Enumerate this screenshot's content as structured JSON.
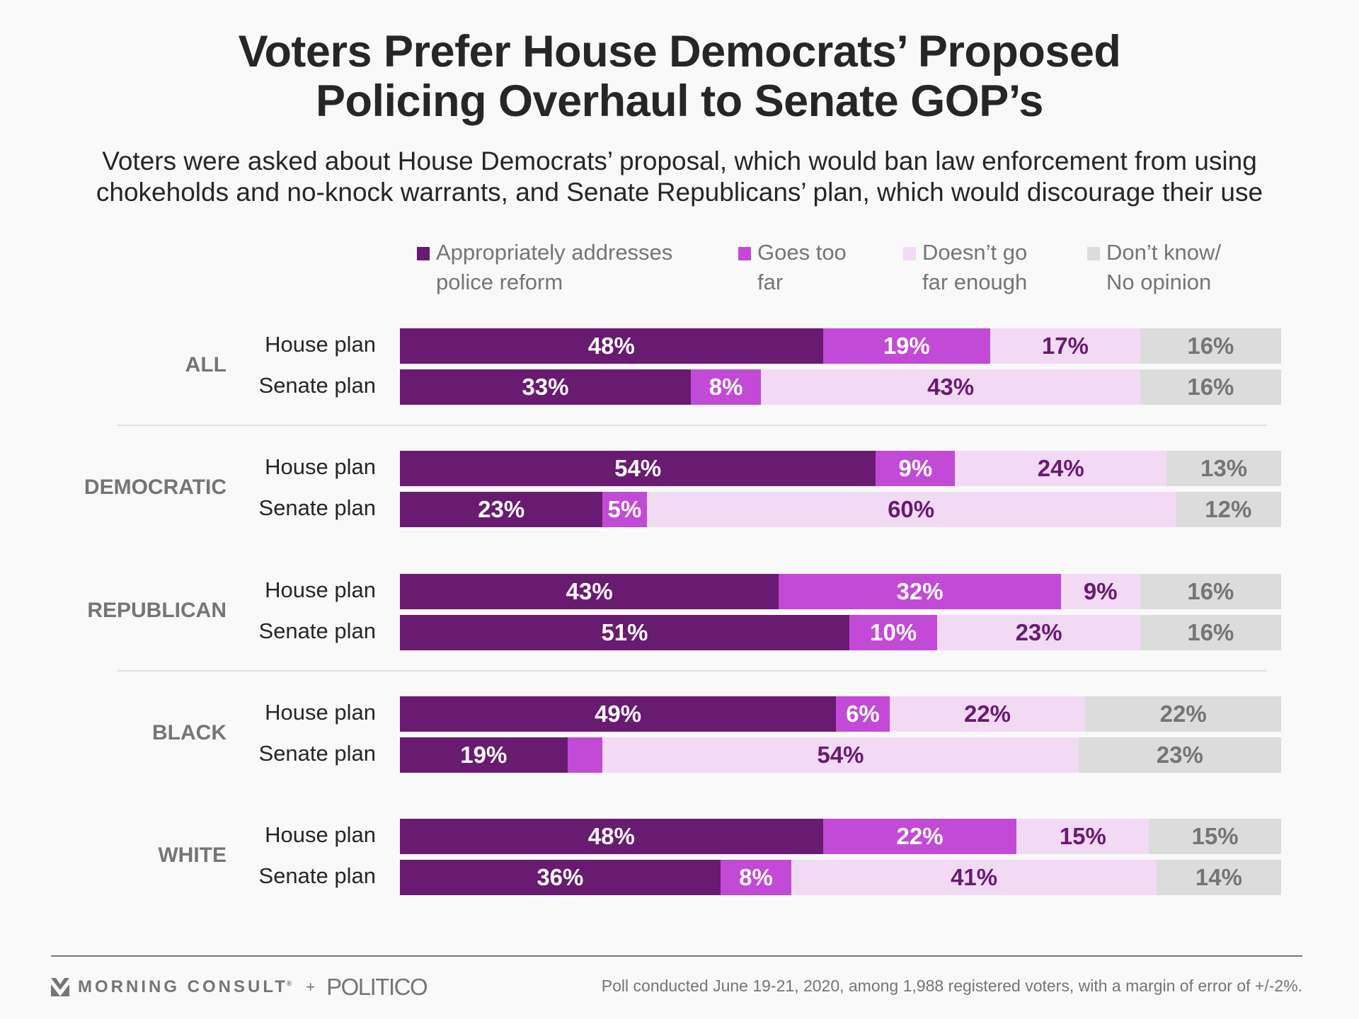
{
  "title": [
    "Voters Prefer House Democrats’ Proposed",
    "Policing Overhaul to Senate GOP’s"
  ],
  "subtitle": [
    "Voters were asked about House Democrats’ proposal, which would ban law enforcement from using",
    "chokeholds and no-knock warrants, and Senate Republicans’ plan, which would discourage their use"
  ],
  "colors": {
    "appropriate": "#691a71",
    "too_far": "#c24ad6",
    "not_far_enough": "#f2daf5",
    "dont_know": "#dcdcdc",
    "label_light": "#ffffff",
    "label_dark": "#691a71",
    "label_gray": "#757575"
  },
  "legend": [
    {
      "key": "appropriate",
      "lines": [
        "Appropriately addresses",
        "police reform"
      ]
    },
    {
      "key": "too_far",
      "lines": [
        "Goes too",
        "far"
      ]
    },
    {
      "key": "not_far_enough",
      "lines": [
        "Doesn’t go",
        "far enough"
      ]
    },
    {
      "key": "dont_know",
      "lines": [
        "Don’t know/",
        "No opinion"
      ]
    }
  ],
  "chart_data": {
    "type": "bar",
    "orientation": "horizontal-stacked-100",
    "title": "Voters Prefer House Democrats’ Proposed Policing Overhaul to Senate GOP’s",
    "subtitle": "Voters were asked about House Democrats’ proposal, which would ban law enforcement from using chokeholds and no-knock warrants, and Senate Republicans’ plan, which would discourage their use",
    "series_names": [
      "Appropriately addresses police reform",
      "Goes too far",
      "Doesn’t go far enough",
      "Don’t know/No opinion"
    ],
    "unit": "%",
    "legend_position": "top",
    "groups": [
      {
        "name": "ALL",
        "rows": [
          {
            "label": "House plan",
            "values": [
              48,
              19,
              17,
              16
            ],
            "labels": [
              "48%",
              "19%",
              "17%",
              "16%"
            ]
          },
          {
            "label": "Senate plan",
            "values": [
              33,
              8,
              43,
              16
            ],
            "labels": [
              "33%",
              "8%",
              "43%",
              "16%"
            ]
          }
        ]
      },
      {
        "name": "DEMOCRATIC",
        "rows": [
          {
            "label": "House plan",
            "values": [
              54,
              9,
              24,
              13
            ],
            "labels": [
              "54%",
              "9%",
              "24%",
              "13%"
            ]
          },
          {
            "label": "Senate plan",
            "values": [
              23,
              5,
              60,
              12
            ],
            "labels": [
              "23%",
              "5%",
              "60%",
              "12%"
            ]
          }
        ]
      },
      {
        "name": "REPUBLICAN",
        "rows": [
          {
            "label": "House plan",
            "values": [
              43,
              32,
              9,
              16
            ],
            "labels": [
              "43%",
              "32%",
              "9%",
              "16%"
            ]
          },
          {
            "label": "Senate plan",
            "values": [
              51,
              10,
              23,
              16
            ],
            "labels": [
              "51%",
              "10%",
              "23%",
              "16%"
            ]
          }
        ]
      },
      {
        "name": "BLACK",
        "rows": [
          {
            "label": "House plan",
            "values": [
              49,
              6,
              22,
              22
            ],
            "labels": [
              "49%",
              "6%",
              "22%",
              "22%"
            ]
          },
          {
            "label": "Senate plan",
            "values": [
              19,
              4,
              54,
              23
            ],
            "labels": [
              "19%",
              "",
              "54%",
              "23%"
            ]
          }
        ]
      },
      {
        "name": "WHITE",
        "rows": [
          {
            "label": "House plan",
            "values": [
              48,
              22,
              15,
              15
            ],
            "labels": [
              "48%",
              "22%",
              "15%",
              "15%"
            ]
          },
          {
            "label": "Senate plan",
            "values": [
              36,
              8,
              41,
              14
            ],
            "labels": [
              "36%",
              "8%",
              "41%",
              "14%"
            ]
          }
        ]
      }
    ],
    "dividers_after_groups": [
      "ALL",
      "REPUBLICAN"
    ]
  },
  "footer": {
    "brand": "MORNING CONSULT",
    "brand_mark": "®",
    "plus": "+",
    "partner": "POLITICO",
    "note": "Poll conducted June 19-21, 2020, among 1,988 registered voters, with a margin of error of +/-2%."
  }
}
